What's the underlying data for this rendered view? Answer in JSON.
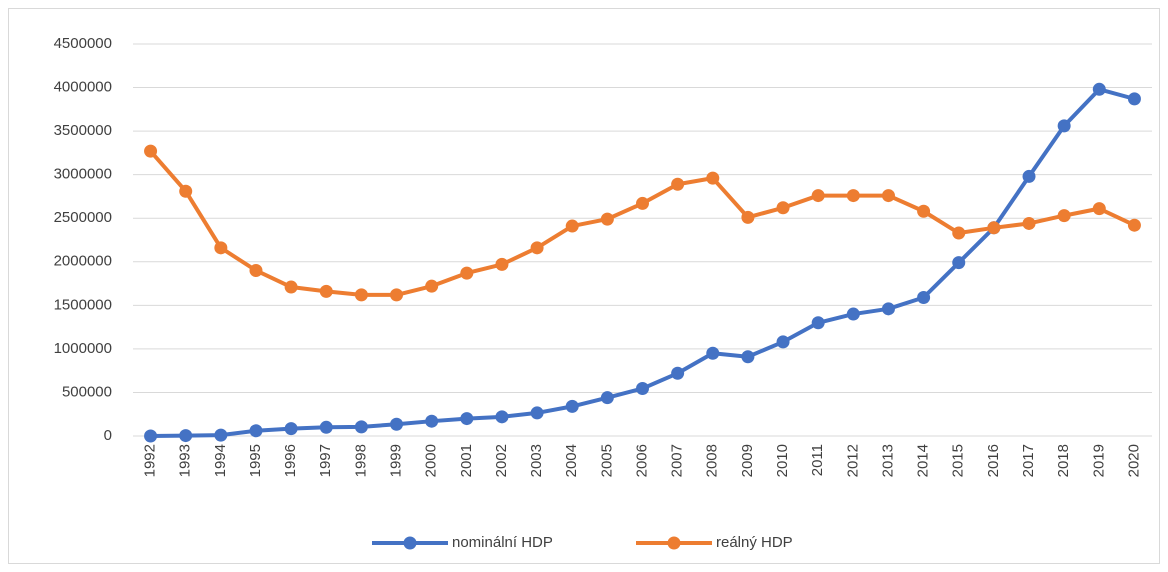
{
  "chart_data": {
    "type": "line",
    "categories": [
      "1992",
      "1993",
      "1994",
      "1995",
      "1996",
      "1997",
      "1998",
      "1999",
      "2000",
      "2001",
      "2002",
      "2003",
      "2004",
      "2005",
      "2006",
      "2007",
      "2008",
      "2009",
      "2010",
      "2011",
      "2012",
      "2013",
      "2014",
      "2015",
      "2016",
      "2017",
      "2018",
      "2019",
      "2020"
    ],
    "series": [
      {
        "name": "nominální HDP",
        "color": "#4472c4",
        "values": [
          0,
          5000,
          10000,
          60000,
          85000,
          100000,
          105000,
          135000,
          170000,
          200000,
          220000,
          265000,
          340000,
          440000,
          545000,
          720000,
          950000,
          910000,
          1080000,
          1300000,
          1400000,
          1460000,
          1590000,
          1990000,
          2390000,
          2980000,
          3560000,
          3980000,
          3870000
        ]
      },
      {
        "name": "reálný HDP",
        "color": "#ed7d31",
        "values": [
          3270000,
          2810000,
          2160000,
          1900000,
          1710000,
          1660000,
          1620000,
          1620000,
          1720000,
          1870000,
          1970000,
          2160000,
          2410000,
          2490000,
          2670000,
          2890000,
          2960000,
          2510000,
          2620000,
          2760000,
          2760000,
          2760000,
          2580000,
          2330000,
          2390000,
          2440000,
          2530000,
          2610000,
          2420000
        ]
      }
    ],
    "ylim": [
      0,
      4500000
    ],
    "yticks": [
      0,
      500000,
      1000000,
      1500000,
      2000000,
      2500000,
      3000000,
      3500000,
      4000000,
      4500000
    ],
    "grid": true,
    "legend": "bottom"
  }
}
